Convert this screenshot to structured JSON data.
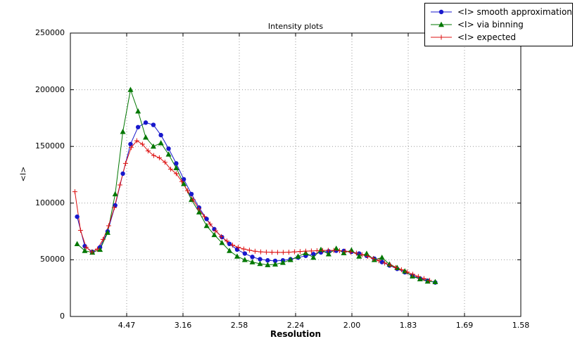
{
  "page": {
    "background": "#ffffff"
  },
  "chart_data": {
    "type": "line",
    "title": "Intensity plots",
    "xlabel": "Resolution",
    "ylabel": "<I>",
    "grid": "dotted",
    "legend_position": "top-right",
    "x_axis": {
      "lim": [
        0,
        0.4
      ],
      "ticks": [
        0.05,
        0.1,
        0.15,
        0.2,
        0.25,
        0.3,
        0.35,
        0.4
      ],
      "tick_labels": [
        "4.47",
        "3.16",
        "2.58",
        "2.24",
        "2.00",
        "1.83",
        "1.69",
        "1.58"
      ]
    },
    "y_axis": {
      "lim": [
        0,
        250000
      ],
      "ticks": [
        0,
        50000,
        100000,
        150000,
        200000,
        250000
      ],
      "tick_labels": [
        "0",
        "50000",
        "100000",
        "150000",
        "200000",
        "250000"
      ]
    },
    "series": [
      {
        "name": "<I> smooth approximation",
        "color": "#1818cc",
        "marker": "circle",
        "x": [
          0.006,
          0.0128,
          0.0195,
          0.0263,
          0.0331,
          0.0398,
          0.0466,
          0.0534,
          0.0601,
          0.0669,
          0.0737,
          0.0804,
          0.0872,
          0.094,
          0.1007,
          0.1075,
          0.1143,
          0.121,
          0.1278,
          0.1346,
          0.1413,
          0.1481,
          0.1549,
          0.1616,
          0.1684,
          0.1752,
          0.1819,
          0.1887,
          0.1955,
          0.2022,
          0.209,
          0.2158,
          0.2225,
          0.2293,
          0.2361,
          0.2428,
          0.2496,
          0.2564,
          0.2631,
          0.2699,
          0.2767,
          0.2834,
          0.2902,
          0.297,
          0.3037,
          0.3105,
          0.3173,
          0.324
        ],
        "y": [
          88000,
          62000,
          57000,
          61000,
          75000,
          98000,
          126000,
          152000,
          167000,
          171000,
          169000,
          160000,
          148000,
          135000,
          121000,
          108000,
          96000,
          86000,
          77000,
          70000,
          64000,
          59000,
          55500,
          52500,
          50500,
          49500,
          49000,
          49500,
          50500,
          52000,
          53500,
          55000,
          56500,
          57500,
          58000,
          57800,
          57000,
          55500,
          53500,
          51000,
          48000,
          45000,
          42000,
          39000,
          36000,
          33500,
          31500,
          30000
        ]
      },
      {
        "name": "<I> via binning",
        "color": "#007700",
        "marker": "triangle",
        "x": [
          0.006,
          0.0128,
          0.0195,
          0.0263,
          0.0331,
          0.0398,
          0.0466,
          0.0534,
          0.0601,
          0.0669,
          0.0737,
          0.0804,
          0.0872,
          0.094,
          0.1007,
          0.1075,
          0.1143,
          0.121,
          0.1278,
          0.1346,
          0.1413,
          0.1481,
          0.1549,
          0.1616,
          0.1684,
          0.1752,
          0.1819,
          0.1887,
          0.1955,
          0.2022,
          0.209,
          0.2158,
          0.2225,
          0.2293,
          0.2361,
          0.2428,
          0.2496,
          0.2564,
          0.2631,
          0.2699,
          0.2767,
          0.2834,
          0.2902,
          0.297,
          0.3037,
          0.3105,
          0.3173,
          0.324
        ],
        "y": [
          64000,
          58000,
          56500,
          59000,
          74000,
          108000,
          163000,
          200000,
          181000,
          158000,
          150000,
          153000,
          143000,
          131000,
          117000,
          103000,
          92000,
          80000,
          72000,
          65000,
          58000,
          53000,
          50000,
          48000,
          46500,
          45500,
          46000,
          47500,
          50000,
          53000,
          56000,
          52000,
          59000,
          55000,
          60000,
          56000,
          58500,
          53000,
          55500,
          50000,
          52000,
          46000,
          43000,
          40000,
          35500,
          33000,
          31000,
          30500
        ]
      },
      {
        "name": "<I> expected",
        "color": "#dd1111",
        "marker": "plus",
        "x": [
          0.004,
          0.009,
          0.014,
          0.019,
          0.024,
          0.029,
          0.034,
          0.039,
          0.044,
          0.049,
          0.054,
          0.059,
          0.064,
          0.069,
          0.074,
          0.079,
          0.084,
          0.089,
          0.094,
          0.099,
          0.104,
          0.109,
          0.114,
          0.119,
          0.124,
          0.129,
          0.134,
          0.139,
          0.144,
          0.149,
          0.154,
          0.159,
          0.164,
          0.169,
          0.174,
          0.179,
          0.184,
          0.189,
          0.194,
          0.199,
          0.204,
          0.209,
          0.214,
          0.219,
          0.224,
          0.229,
          0.234,
          0.239,
          0.244,
          0.249,
          0.254,
          0.259,
          0.264,
          0.269,
          0.274,
          0.279,
          0.284,
          0.289,
          0.294,
          0.299,
          0.304,
          0.309,
          0.314,
          0.319
        ],
        "y": [
          110000,
          76000,
          61000,
          57000,
          59500,
          68000,
          80000,
          96000,
          116000,
          135000,
          149000,
          155000,
          152000,
          146000,
          142000,
          140000,
          136000,
          130000,
          126000,
          119000,
          111000,
          103000,
          95000,
          88000,
          81500,
          75500,
          70500,
          66500,
          63000,
          61000,
          59500,
          58500,
          57500,
          57000,
          56800,
          56600,
          56500,
          56500,
          56700,
          57000,
          57300,
          57600,
          57800,
          58000,
          58200,
          58300,
          58200,
          58000,
          57500,
          56800,
          55800,
          54500,
          53000,
          51200,
          49200,
          47200,
          45200,
          43200,
          41200,
          39200,
          37200,
          35200,
          33400,
          31800
        ]
      }
    ]
  }
}
